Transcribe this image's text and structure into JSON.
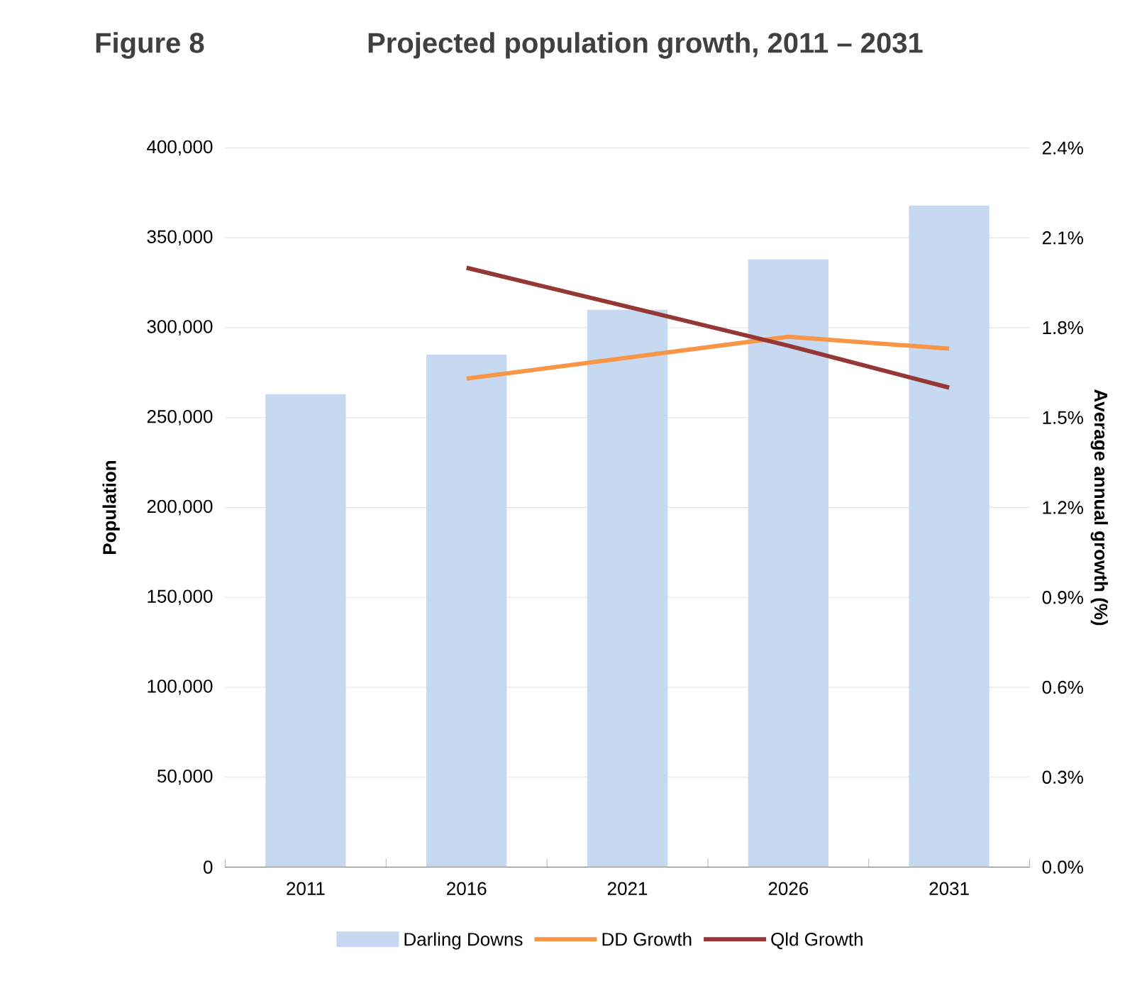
{
  "chart_data": {
    "type": "bar",
    "title": "Projected population growth, 2011 – 2031",
    "annotations": [
      "Figure 8"
    ],
    "ylabel": "Population",
    "y2label": "Average annual growth (%)",
    "categories": [
      "2011",
      "2016",
      "2021",
      "2026",
      "2031"
    ],
    "series": [
      {
        "name": "Darling Downs",
        "color": "#c6d9f1",
        "values": [
          263000,
          285000,
          310000,
          338000,
          368000
        ]
      },
      {
        "name": "DD Growth",
        "type": "line",
        "axis": "y2",
        "color": "#f79646",
        "values": [
          null,
          1.63,
          1.7,
          1.77,
          1.73
        ]
      },
      {
        "name": "Qld Growth",
        "type": "line",
        "axis": "y2",
        "color": "#953735",
        "values": [
          null,
          2.0,
          1.87,
          1.74,
          1.6
        ]
      }
    ],
    "ylim": [
      0,
      400000
    ],
    "yticks": [
      {
        "value": 0,
        "label": "0"
      },
      {
        "value": 50000,
        "label": "50,000"
      },
      {
        "value": 100000,
        "label": "100,000"
      },
      {
        "value": 150000,
        "label": "150,000"
      },
      {
        "value": 200000,
        "label": "200,000"
      },
      {
        "value": 250000,
        "label": "250,000"
      },
      {
        "value": 300000,
        "label": "300,000"
      },
      {
        "value": 350000,
        "label": "350,000"
      },
      {
        "value": 400000,
        "label": "400,000"
      }
    ],
    "y2lim": [
      0,
      2.4
    ],
    "y2ticks": [
      {
        "value": 0,
        "label": "0.0%"
      },
      {
        "value": 0.3,
        "label": "0.3%"
      },
      {
        "value": 0.6,
        "label": "0.6%"
      },
      {
        "value": 0.9,
        "label": "0.9%"
      },
      {
        "value": 1.2,
        "label": "1.2%"
      },
      {
        "value": 1.5,
        "label": "1.5%"
      },
      {
        "value": 1.8,
        "label": "1.8%"
      },
      {
        "value": 2.1,
        "label": "2.1%"
      },
      {
        "value": 2.4,
        "label": "2.4%"
      }
    ],
    "grid": "y",
    "legend": "bottom",
    "marker": "none",
    "line_style": "solid"
  }
}
